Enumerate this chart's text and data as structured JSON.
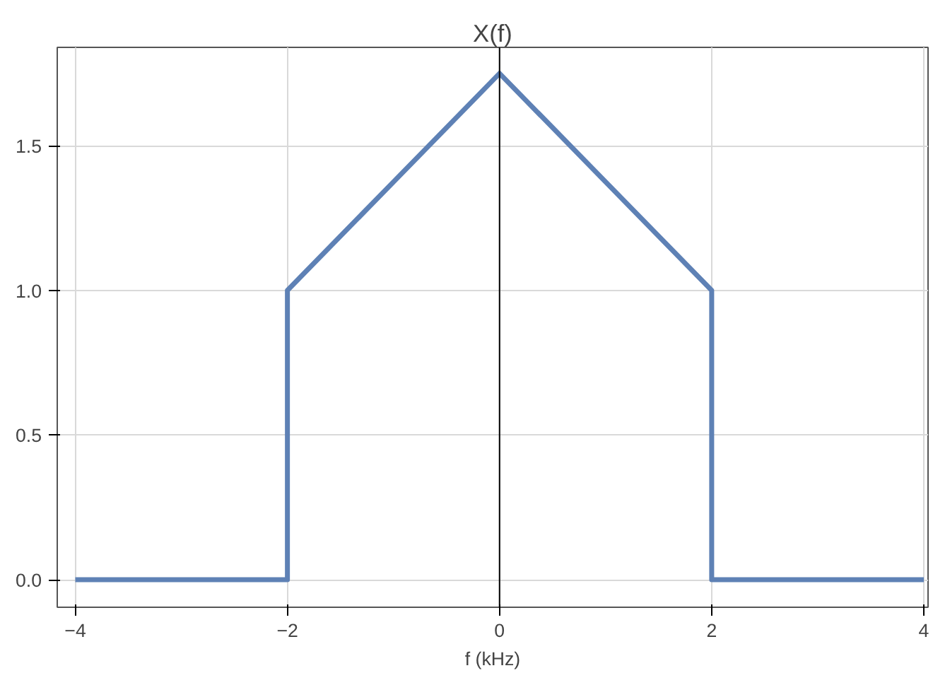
{
  "chart_data": {
    "type": "line",
    "title": "X(f)",
    "xlabel": "f (kHz)",
    "series": [
      {
        "color": "#5e81b5",
        "x": [
          -4,
          -2,
          -2,
          0,
          2,
          2,
          4
        ],
        "values": [
          0,
          0,
          1,
          1.75,
          1,
          0,
          0
        ]
      }
    ],
    "xlim": [
      -4.17,
      4.04
    ],
    "ylim": [
      -0.095,
      1.84
    ],
    "xticks": [
      -4,
      -2,
      0,
      2,
      4
    ],
    "yticks": [
      {
        "value": 0,
        "label": "0.0"
      },
      0.5,
      {
        "value": 1,
        "label": "1.0"
      },
      1.5
    ],
    "ref_lines": [
      {
        "axis": "x",
        "value": 0,
        "color": "#000000"
      }
    ],
    "grid": true,
    "marker": "none",
    "line_style": "solid"
  }
}
